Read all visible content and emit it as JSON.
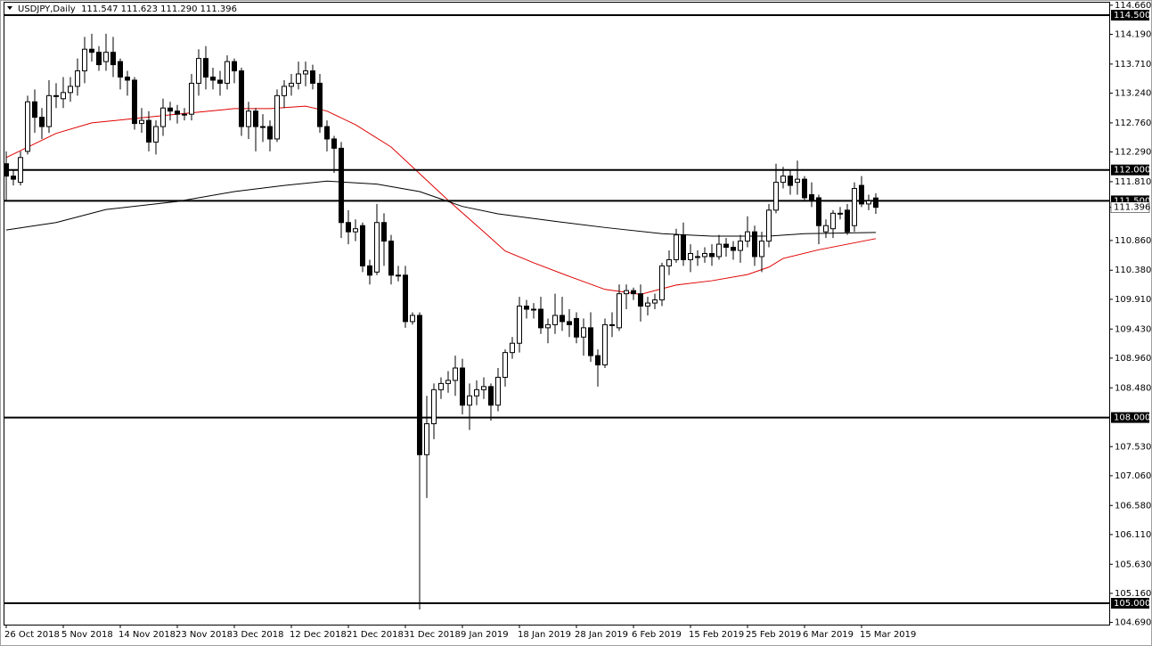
{
  "chart_data": {
    "type": "candlestick",
    "title": "USDJPY,Daily  111.547 111.623 111.290 111.396",
    "categories": [
      "26 Oct 2018",
      null,
      null,
      null,
      null,
      null,
      null,
      null,
      "5 Nov 2018",
      null,
      null,
      null,
      null,
      null,
      null,
      null,
      "14 Nov 2018",
      null,
      null,
      null,
      null,
      null,
      null,
      null,
      "23 Nov 2018",
      null,
      null,
      null,
      null,
      null,
      null,
      null,
      "3 Dec 2018",
      null,
      null,
      null,
      null,
      null,
      null,
      null,
      "12 Dec 2018",
      null,
      null,
      null,
      null,
      null,
      null,
      null,
      "21 Dec 2018",
      null,
      null,
      null,
      null,
      null,
      null,
      null,
      "31 Dec 2018",
      null,
      null,
      null,
      null,
      null,
      null,
      null,
      "9 Jan 2019",
      null,
      null,
      null,
      null,
      null,
      null,
      null,
      "18 Jan 2019",
      null,
      null,
      null,
      null,
      null,
      null,
      null,
      "28 Jan 2019",
      null,
      null,
      null,
      null,
      null,
      null,
      null,
      "6 Feb 2019",
      null,
      null,
      null,
      null,
      null,
      null,
      null,
      "15 Feb 2019",
      null,
      null,
      null,
      null,
      null,
      null,
      null,
      "25 Feb 2019",
      null,
      null,
      null,
      null,
      null,
      null,
      null,
      "6 Mar 2019",
      null,
      null,
      null,
      null,
      null,
      null,
      null,
      "15 Mar 2019",
      null,
      null
    ],
    "open": [
      112.1,
      111.9,
      111.8,
      112.3,
      113.1,
      112.85,
      112.7,
      113.2,
      113.15,
      113.25,
      113.35,
      113.6,
      113.95,
      113.9,
      113.75,
      113.9,
      113.75,
      113.5,
      113.45,
      112.75,
      112.8,
      112.45,
      112.7,
      113.0,
      112.95,
      112.9,
      112.9,
      113.4,
      113.8,
      113.5,
      113.45,
      113.4,
      113.75,
      113.6,
      112.7,
      112.95,
      112.7,
      112.7,
      112.5,
      113.2,
      113.35,
      113.4,
      113.55,
      113.6,
      113.4,
      112.7,
      112.5,
      112.35,
      111.15,
      111.0,
      111.1,
      110.45,
      110.35,
      111.15,
      110.85,
      110.3,
      110.3,
      109.55,
      109.65,
      107.4,
      107.9,
      108.45,
      108.55,
      108.6,
      108.8,
      108.2,
      108.35,
      108.45,
      108.5,
      108.2,
      108.65,
      109.05,
      109.2,
      109.8,
      109.75,
      109.75,
      109.45,
      109.5,
      109.65,
      109.55,
      109.6,
      109.3,
      109.45,
      109.0,
      108.85,
      109.5,
      109.45,
      110.0,
      110.05,
      110.0,
      109.8,
      109.85,
      109.9,
      110.45,
      110.55,
      110.95,
      110.55,
      110.6,
      110.6,
      110.65,
      110.6,
      110.8,
      110.75,
      110.7,
      110.85,
      111.0,
      110.6,
      110.85,
      111.35,
      111.8,
      111.9,
      111.8,
      111.85,
      111.6,
      111.55,
      111.0,
      111.05,
      111.3,
      111.35,
      111.1,
      111.75,
      111.45,
      111.547
    ],
    "high": [
      112.3,
      112.0,
      112.3,
      113.2,
      113.3,
      113.0,
      113.45,
      113.4,
      113.5,
      113.5,
      113.8,
      114.15,
      114.2,
      114.0,
      114.2,
      114.15,
      113.8,
      113.6,
      113.5,
      113.0,
      112.95,
      112.8,
      113.15,
      113.1,
      113.05,
      113.0,
      113.55,
      113.95,
      114.0,
      113.65,
      113.6,
      113.85,
      113.8,
      113.65,
      113.1,
      113.0,
      112.9,
      112.8,
      113.3,
      113.45,
      113.55,
      113.75,
      113.75,
      113.7,
      113.55,
      112.8,
      112.55,
      112.45,
      111.35,
      111.2,
      111.15,
      110.55,
      111.45,
      111.3,
      110.95,
      110.45,
      110.45,
      109.7,
      109.7,
      108.35,
      108.55,
      108.65,
      108.75,
      109.0,
      108.95,
      108.55,
      108.6,
      108.65,
      108.55,
      108.8,
      109.1,
      109.3,
      109.95,
      109.9,
      109.85,
      109.95,
      109.6,
      110.0,
      109.95,
      109.75,
      109.7,
      109.6,
      109.7,
      109.1,
      109.6,
      109.7,
      110.15,
      110.15,
      110.1,
      110.15,
      109.95,
      110.0,
      110.5,
      110.7,
      111.05,
      111.15,
      110.8,
      110.7,
      110.75,
      110.8,
      110.95,
      110.9,
      110.85,
      110.95,
      111.25,
      111.1,
      111.0,
      111.45,
      112.1,
      112.05,
      112.0,
      112.15,
      111.9,
      111.8,
      111.6,
      111.2,
      111.35,
      111.4,
      111.45,
      111.8,
      111.9,
      111.6,
      111.623
    ],
    "low": [
      111.5,
      111.75,
      111.75,
      112.25,
      112.6,
      112.5,
      112.6,
      113.0,
      113.0,
      113.1,
      113.2,
      113.4,
      113.75,
      113.6,
      113.6,
      113.5,
      113.3,
      113.2,
      112.65,
      112.6,
      112.3,
      112.25,
      112.55,
      112.8,
      112.75,
      112.8,
      112.8,
      113.2,
      113.3,
      113.3,
      113.2,
      113.3,
      113.4,
      112.55,
      112.5,
      112.3,
      112.45,
      112.3,
      112.45,
      113.0,
      113.2,
      113.3,
      113.35,
      113.3,
      112.6,
      112.3,
      111.95,
      110.9,
      110.8,
      110.85,
      110.35,
      110.15,
      110.3,
      110.45,
      110.15,
      110.2,
      109.45,
      109.5,
      104.9,
      106.7,
      107.65,
      108.3,
      108.4,
      108.35,
      108.05,
      107.8,
      108.2,
      108.3,
      107.95,
      108.1,
      108.5,
      108.95,
      109.05,
      109.6,
      109.6,
      109.35,
      109.2,
      109.35,
      109.4,
      109.3,
      109.2,
      109.0,
      108.9,
      108.5,
      108.8,
      109.3,
      109.4,
      109.75,
      109.9,
      109.55,
      109.65,
      109.75,
      109.8,
      110.3,
      110.5,
      110.45,
      110.35,
      110.45,
      110.5,
      110.45,
      110.55,
      110.6,
      110.55,
      110.5,
      110.75,
      110.45,
      110.35,
      110.75,
      111.3,
      111.7,
      111.6,
      111.6,
      111.5,
      111.4,
      110.8,
      110.9,
      110.9,
      111.2,
      110.95,
      111.0,
      111.4,
      111.35,
      111.29
    ],
    "close": [
      111.9,
      111.85,
      112.2,
      113.1,
      112.85,
      112.7,
      113.2,
      113.2,
      113.25,
      113.35,
      113.6,
      113.95,
      113.9,
      113.7,
      113.9,
      113.7,
      113.5,
      113.45,
      112.75,
      112.8,
      112.45,
      112.7,
      113.0,
      112.95,
      112.9,
      112.9,
      113.4,
      113.8,
      113.5,
      113.45,
      113.4,
      113.75,
      113.6,
      112.7,
      112.95,
      112.7,
      112.7,
      112.5,
      113.2,
      113.35,
      113.4,
      113.55,
      113.6,
      113.4,
      112.7,
      112.5,
      112.35,
      111.15,
      111.0,
      111.05,
      110.45,
      110.3,
      111.15,
      110.85,
      110.3,
      110.3,
      109.55,
      109.65,
      107.4,
      107.9,
      108.45,
      108.55,
      108.6,
      108.8,
      108.2,
      108.35,
      108.45,
      108.5,
      108.2,
      108.65,
      109.05,
      109.2,
      109.8,
      109.75,
      109.75,
      109.45,
      109.5,
      109.65,
      109.55,
      109.5,
      109.3,
      109.45,
      109.0,
      108.85,
      109.5,
      109.5,
      110.0,
      110.05,
      110.0,
      109.8,
      109.85,
      109.9,
      110.45,
      110.55,
      110.95,
      110.55,
      110.65,
      110.6,
      110.65,
      110.6,
      110.8,
      110.75,
      110.7,
      110.85,
      111.0,
      110.6,
      110.85,
      111.35,
      111.8,
      111.9,
      111.75,
      111.85,
      111.55,
      111.5,
      111.1,
      111.1,
      111.3,
      111.3,
      111.0,
      111.7,
      111.45,
      111.5,
      111.396
    ],
    "lines": [
      {
        "color": "#e00000",
        "x": [
          0,
          7,
          12,
          18,
          24,
          32,
          37,
          42,
          45,
          49,
          54,
          58,
          62,
          67,
          70,
          74,
          79,
          84,
          89,
          94,
          99,
          104,
          107,
          109,
          114,
          122
        ],
        "values": [
          112.2,
          112.59,
          112.76,
          112.83,
          112.9,
          112.99,
          112.99,
          113.03,
          112.95,
          112.73,
          112.37,
          111.94,
          111.51,
          111.0,
          110.69,
          110.5,
          110.28,
          110.07,
          109.99,
          110.14,
          110.21,
          110.31,
          110.43,
          110.57,
          110.71,
          110.89
        ]
      },
      {
        "color": "#000000",
        "x": [
          0,
          7,
          14,
          24,
          32,
          39,
          45,
          52,
          58,
          64,
          69,
          77,
          84,
          92,
          99,
          107,
          112,
          122
        ],
        "values": [
          111.03,
          111.15,
          111.36,
          111.49,
          111.65,
          111.75,
          111.82,
          111.77,
          111.65,
          111.41,
          111.29,
          111.17,
          111.07,
          110.97,
          110.93,
          110.93,
          110.97,
          110.99
        ]
      }
    ],
    "hlines": [
      {
        "value": 114.5,
        "label": "114.500"
      },
      {
        "value": 112.0,
        "label": "112.000"
      },
      {
        "value": 111.5,
        "label": "111.500"
      },
      {
        "value": 108.0,
        "label": "108.000"
      },
      {
        "value": 105.0,
        "label": "105.000"
      }
    ],
    "last_price": {
      "value": 111.396,
      "label": "111.396"
    },
    "ylim": [
      104.655,
      114.716
    ],
    "yticks": [
      {
        "value": 114.66,
        "label": "114.660"
      },
      {
        "value": 114.19,
        "label": "114.190"
      },
      {
        "value": 113.71,
        "label": "113.710"
      },
      {
        "value": 113.24,
        "label": "113.240"
      },
      {
        "value": 112.76,
        "label": "112.760"
      },
      {
        "value": 112.29,
        "label": "112.290"
      },
      {
        "value": 111.81,
        "label": "111.810"
      },
      {
        "value": 110.86,
        "label": "110.860"
      },
      {
        "value": 110.38,
        "label": "110.380"
      },
      {
        "value": 109.91,
        "label": "109.910"
      },
      {
        "value": 109.43,
        "label": "109.430"
      },
      {
        "value": 108.96,
        "label": "108.960"
      },
      {
        "value": 108.48,
        "label": "108.480"
      },
      {
        "value": 107.53,
        "label": "107.530"
      },
      {
        "value": 107.06,
        "label": "107.060"
      },
      {
        "value": 106.58,
        "label": "106.580"
      },
      {
        "value": 106.11,
        "label": "106.110"
      },
      {
        "value": 105.63,
        "label": "105.630"
      },
      {
        "value": 105.16,
        "label": "105.160"
      },
      {
        "value": 104.69,
        "label": "104.690"
      }
    ],
    "up_color": "#ffffff",
    "down_color": "#000000"
  }
}
